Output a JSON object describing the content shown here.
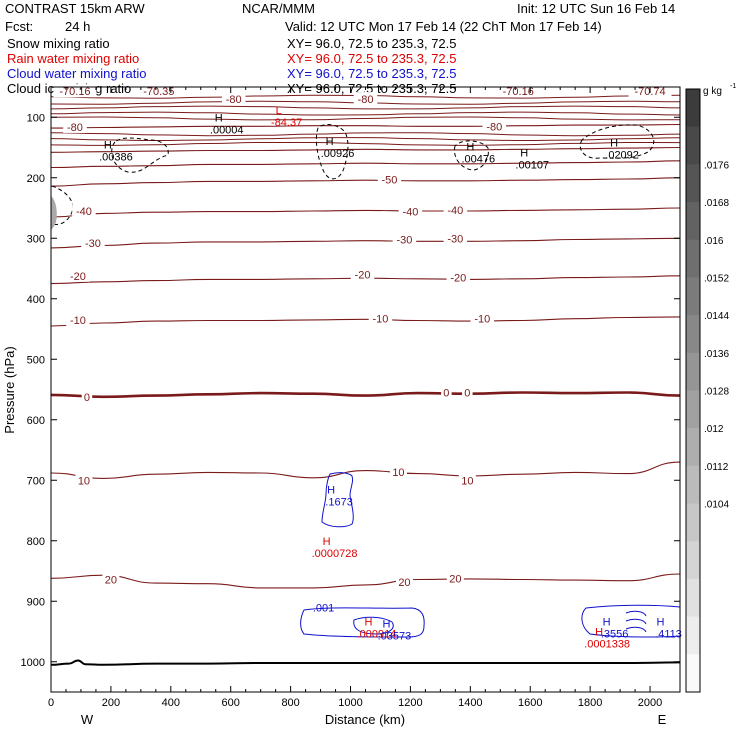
{
  "header": {
    "model": "CONTRAST 15km ARW",
    "org": "NCAR/MMM",
    "init": "Init: 12 UTC Sun 16 Feb 14",
    "fcst_label": "Fcst:",
    "fcst_value": "24 h",
    "valid": "Valid: 12 UTC Mon 17 Feb 14 (22 ChT Mon 17 Feb 14)",
    "fields": [
      {
        "name": "Snow mixing ratio",
        "xy": "XY=   96.0, 72.5 to 235.3, 72.5",
        "color": "#000000"
      },
      {
        "name": "Rain water mixing ratio",
        "xy": "XY=   96.0, 72.5 to 235.3, 72.5",
        "color": "#dd0000"
      },
      {
        "name": "Cloud water mixing ratio",
        "xy": "XY=   96.0, 72.5 to 235.3, 72.5",
        "color": "#1010cc"
      },
      {
        "name": "Cloud ice mixing ratio",
        "xy": "XY=   96.0, 72.5 to 235.3, 72.5",
        "color": "#000000"
      }
    ]
  },
  "colors": {
    "temperature": "#7a1a1a",
    "rain": "#dd0000",
    "cloud_water": "#1010cc",
    "snow": "#000000",
    "terrain": "#000000"
  },
  "chart_data": {
    "type": "cross-section contour",
    "xlabel": "Distance (km)",
    "ylabel": "Pressure (hPa)",
    "xlim": [
      0,
      2100
    ],
    "ylim": [
      1050,
      50
    ],
    "x_ticks": [
      0,
      200,
      400,
      600,
      800,
      1000,
      1200,
      1400,
      1600,
      1800,
      2000
    ],
    "y_ticks": [
      100,
      200,
      300,
      400,
      500,
      600,
      700,
      800,
      900,
      1000
    ],
    "direction_left": "W",
    "direction_right": "E",
    "colorbar": {
      "units": "g kg",
      "units_exp": "-1",
      "labels": [
        ".0176",
        ".0168",
        ".016",
        ".0152",
        ".0144",
        ".0136",
        ".0128",
        ".012",
        ".0112",
        ".0104"
      ],
      "levels": 16
    },
    "temperature_contours": [
      {
        "value": 20,
        "label": "20",
        "p": [
          862,
          857,
          870,
          871,
          878,
          878,
          873,
          864,
          863,
          864,
          865,
          866,
          855
        ]
      },
      {
        "value": 10,
        "label": "10",
        "p": [
          688,
          697,
          690,
          687,
          688,
          696,
          684,
          689,
          693,
          690,
          687,
          689,
          670
        ]
      },
      {
        "value": 0,
        "label": "0",
        "p": [
          559,
          562,
          560,
          558,
          556,
          557,
          560,
          556,
          557,
          555,
          556,
          555,
          560
        ],
        "bold": true
      },
      {
        "value": -10,
        "label": "-10",
        "p": [
          445,
          440,
          437,
          436,
          436,
          435,
          434,
          436,
          437,
          436,
          433,
          431,
          430
        ]
      },
      {
        "value": -20,
        "label": "-20",
        "p": [
          375,
          372,
          370,
          368,
          368,
          367,
          366,
          367,
          368,
          367,
          365,
          364,
          362
        ]
      },
      {
        "value": -30,
        "label": "-30",
        "p": [
          316,
          312,
          308,
          306,
          306,
          305,
          304,
          305,
          305,
          304,
          302,
          301,
          300
        ]
      },
      {
        "value": -40,
        "label": "-40",
        "p": [
          265,
          259,
          257,
          256,
          256,
          255,
          254,
          255,
          255,
          254,
          253,
          252,
          250
        ]
      },
      {
        "value": -50,
        "label": "-50",
        "p": [
          214,
          210,
          208,
          206,
          206,
          205,
          204,
          205,
          205,
          204,
          203,
          202,
          200
        ]
      },
      {
        "value": -60,
        "label": "",
        "p": [
          183,
          181,
          180,
          178,
          178,
          177,
          176,
          177,
          177,
          176,
          175,
          174,
          172
        ]
      },
      {
        "value": -70,
        "label": "",
        "p": [
          158,
          157,
          156,
          155,
          155,
          154,
          153,
          154,
          154,
          153,
          152,
          151,
          150
        ]
      },
      {
        "value": -80,
        "label": "-80",
        "p": [
          118,
          117,
          116,
          115,
          115,
          114,
          114,
          115,
          115,
          114,
          113,
          113,
          112
        ]
      }
    ],
    "contour_labels": [
      {
        "text": "20",
        "x": 200,
        "p": 864,
        "color": "temperature"
      },
      {
        "text": "20",
        "x": 1180,
        "p": 868,
        "color": "temperature"
      },
      {
        "text": "20",
        "x": 1350,
        "p": 862,
        "color": "temperature"
      },
      {
        "text": "10",
        "x": 110,
        "p": 700,
        "color": "temperature"
      },
      {
        "text": "10",
        "x": 1160,
        "p": 686,
        "color": "temperature"
      },
      {
        "text": "10",
        "x": 1390,
        "p": 700,
        "color": "temperature"
      },
      {
        "text": "0",
        "x": 120,
        "p": 562,
        "color": "temperature"
      },
      {
        "text": "0",
        "x": 1320,
        "p": 555,
        "color": "temperature"
      },
      {
        "text": "0",
        "x": 1390,
        "p": 555,
        "color": "temperature"
      },
      {
        "text": "-10",
        "x": 90,
        "p": 435,
        "color": "temperature"
      },
      {
        "text": "-10",
        "x": 1100,
        "p": 433,
        "color": "temperature"
      },
      {
        "text": "-10",
        "x": 1440,
        "p": 433,
        "color": "temperature"
      },
      {
        "text": "-20",
        "x": 90,
        "p": 362,
        "color": "temperature"
      },
      {
        "text": "-20",
        "x": 1040,
        "p": 360,
        "color": "temperature"
      },
      {
        "text": "-20",
        "x": 1360,
        "p": 365,
        "color": "temperature"
      },
      {
        "text": "-30",
        "x": 140,
        "p": 308,
        "color": "temperature"
      },
      {
        "text": "-30",
        "x": 1180,
        "p": 302,
        "color": "temperature"
      },
      {
        "text": "-30",
        "x": 1350,
        "p": 300,
        "color": "temperature"
      },
      {
        "text": "-40",
        "x": 110,
        "p": 255,
        "color": "temperature"
      },
      {
        "text": "-40",
        "x": 1200,
        "p": 256,
        "color": "temperature"
      },
      {
        "text": "-40",
        "x": 1350,
        "p": 253,
        "color": "temperature"
      },
      {
        "text": "-50",
        "x": 1130,
        "p": 203,
        "color": "temperature"
      },
      {
        "text": "-80",
        "x": 80,
        "p": 116,
        "color": "temperature"
      },
      {
        "text": "-80",
        "x": 610,
        "p": 70,
        "color": "temperature"
      },
      {
        "text": "-80",
        "x": 1050,
        "p": 70,
        "color": "temperature"
      },
      {
        "text": "-80",
        "x": 1480,
        "p": 115,
        "color": "temperature"
      },
      {
        "text": "-70.16",
        "x": 80,
        "p": 57,
        "color": "temperature"
      },
      {
        "text": "-70.35",
        "x": 360,
        "p": 57,
        "color": "temperature"
      },
      {
        "text": "-70.16",
        "x": 1560,
        "p": 57,
        "color": "temperature"
      },
      {
        "text": "-70.74",
        "x": 2000,
        "p": 57,
        "color": "temperature"
      }
    ],
    "extrema": [
      {
        "label": "L",
        "value": "-84.37",
        "x": 760,
        "p": 95,
        "color": "rain"
      },
      {
        "label": "H",
        "value": ".00004",
        "x": 560,
        "p": 107,
        "color": "snow"
      },
      {
        "label": "H",
        "value": ".00386",
        "x": 190,
        "p": 152,
        "color": "snow"
      },
      {
        "label": "H",
        "value": ".00926",
        "x": 930,
        "p": 146,
        "color": "snow"
      },
      {
        "label": "H",
        "value": ".00476",
        "x": 1400,
        "p": 155,
        "color": "snow"
      },
      {
        "label": "H",
        "value": ".00107",
        "x": 1580,
        "p": 165,
        "color": "snow"
      },
      {
        "label": "H",
        "value": ".02092",
        "x": 1880,
        "p": 148,
        "color": "snow"
      },
      {
        "label": "H",
        "value": ".1673",
        "x": 935,
        "p": 722,
        "color": "cloud_water"
      },
      {
        "label": "H",
        "value": ".0000728",
        "x": 920,
        "p": 807,
        "color": "rain"
      },
      {
        "label": "H",
        "value": ".000914",
        "x": 1060,
        "p": 940,
        "color": "rain"
      },
      {
        "label": "H",
        "value": ".03573",
        "x": 1120,
        "p": 943,
        "color": "cloud_water"
      },
      {
        "label": "H",
        "value": ".3556",
        "x": 1855,
        "p": 940,
        "color": "cloud_water"
      },
      {
        "label": "H",
        "value": ".4113",
        "x": 2035,
        "p": 940,
        "color": "cloud_water"
      },
      {
        "label": "H",
        "value": ".0001338",
        "x": 1830,
        "p": 957,
        "color": "rain"
      }
    ],
    "cloud_water_contour_labels": [
      {
        "text": ".001",
        "x": 910,
        "p": 910
      }
    ],
    "terrain_p": [
      1005,
      1005,
      1003,
      1003,
      1002,
      1002,
      1002,
      1002,
      1002,
      1002,
      1002,
      1002,
      1001
    ],
    "terrain_bump": {
      "x": 90,
      "p": 998
    }
  }
}
